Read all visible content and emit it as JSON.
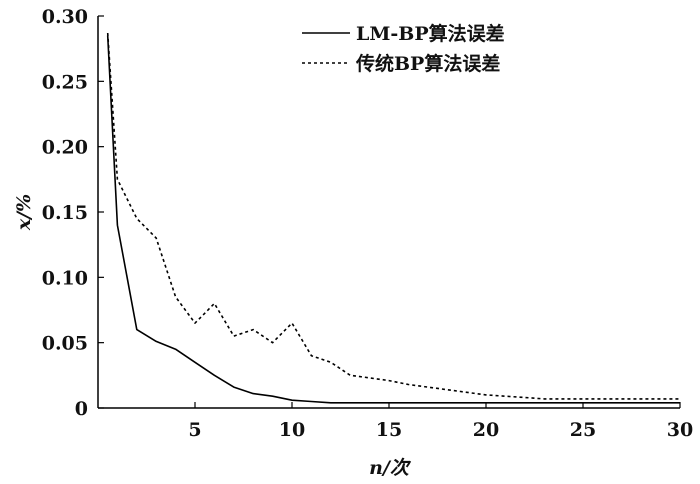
{
  "chart_data": {
    "type": "line",
    "xlabel": "n/次",
    "ylabel": "x/%",
    "xlim": [
      0,
      30
    ],
    "ylim": [
      0,
      0.3
    ],
    "x_ticks": [
      5,
      10,
      15,
      20,
      25,
      30
    ],
    "y_ticks": [
      0,
      0.05,
      0.1,
      0.15,
      0.2,
      0.25,
      0.3
    ],
    "x_tick_labels": [
      "5",
      "10",
      "15",
      "20",
      "25",
      "30"
    ],
    "y_tick_labels": [
      "0",
      "0.05",
      "0.10",
      "0.15",
      "0.20",
      "0.25",
      "0.30"
    ],
    "grid": false,
    "legend_position": "top-right",
    "series": [
      {
        "name": "LM-BP算法误差",
        "style": "solid",
        "x": [
          0.5,
          1,
          2,
          3,
          4,
          5,
          6,
          7,
          8,
          9,
          10,
          11,
          12,
          13,
          14,
          15,
          16,
          17,
          18,
          19,
          20,
          21,
          22,
          23,
          24,
          25,
          26,
          27,
          28,
          29,
          30
        ],
        "y": [
          0.285,
          0.14,
          0.06,
          0.051,
          0.045,
          0.035,
          0.025,
          0.016,
          0.011,
          0.009,
          0.006,
          0.005,
          0.004,
          0.004,
          0.004,
          0.004,
          0.004,
          0.004,
          0.004,
          0.004,
          0.004,
          0.004,
          0.004,
          0.004,
          0.004,
          0.004,
          0.004,
          0.004,
          0.004,
          0.004,
          0.004
        ]
      },
      {
        "name": "传统BP算法误差",
        "style": "dotted",
        "x": [
          0.5,
          1,
          2,
          3,
          4,
          5,
          6,
          7,
          8,
          9,
          10,
          11,
          12,
          13,
          14,
          15,
          16,
          17,
          18,
          19,
          20,
          21,
          22,
          23,
          24,
          25,
          26,
          27,
          28,
          29,
          30
        ],
        "y": [
          0.287,
          0.175,
          0.145,
          0.13,
          0.085,
          0.065,
          0.08,
          0.055,
          0.06,
          0.05,
          0.065,
          0.04,
          0.035,
          0.025,
          0.023,
          0.021,
          0.018,
          0.016,
          0.014,
          0.012,
          0.01,
          0.009,
          0.008,
          0.007,
          0.007,
          0.007,
          0.007,
          0.007,
          0.007,
          0.007,
          0.007
        ]
      }
    ]
  }
}
